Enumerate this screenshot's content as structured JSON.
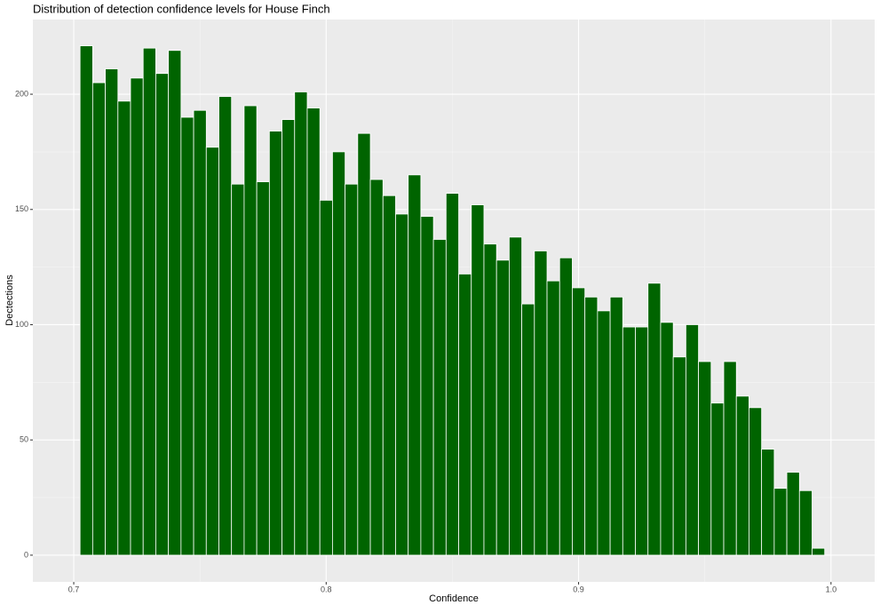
{
  "chart_data": {
    "type": "histogram",
    "title": "Distribution of detection confidence levels for House Finch",
    "x_label": "Confidence",
    "y_label": "Dectections",
    "bins": [
      0.7025,
      0.7075,
      0.7125,
      0.7175,
      0.7225,
      0.7275,
      0.7325,
      0.7375,
      0.7425,
      0.7475,
      0.7525,
      0.7575,
      0.7625,
      0.7675,
      0.7725,
      0.7775,
      0.7825,
      0.7875,
      0.7925,
      0.7975,
      0.8025,
      0.8075,
      0.8125,
      0.8175,
      0.8225,
      0.8275,
      0.8325,
      0.8375,
      0.8425,
      0.8475,
      0.8525,
      0.8575,
      0.8625,
      0.8675,
      0.8725,
      0.8775,
      0.8825,
      0.8875,
      0.8925,
      0.8975,
      0.9025,
      0.9075,
      0.9125,
      0.9175,
      0.9225,
      0.9275,
      0.9325,
      0.9375,
      0.9425,
      0.9475,
      0.9525,
      0.9575,
      0.9625,
      0.9675,
      0.9725,
      0.9775,
      0.9825,
      0.9875,
      0.9925,
      0.9975
    ],
    "values": [
      221,
      205,
      211,
      197,
      207,
      220,
      209,
      219,
      190,
      193,
      177,
      199,
      161,
      195,
      162,
      184,
      189,
      201,
      194,
      154,
      175,
      161,
      183,
      163,
      156,
      148,
      165,
      147,
      137,
      157,
      122,
      152,
      135,
      128,
      138,
      109,
      132,
      119,
      129,
      116,
      112,
      106,
      112,
      99,
      99,
      118,
      101,
      86,
      100,
      84,
      66,
      84,
      69,
      64,
      46,
      29,
      36,
      28,
      3
    ],
    "color": "#006400",
    "xlim": [
      0.6838,
      1.0173
    ],
    "ylim": [
      -11.6,
      232.4
    ],
    "xticks": [
      0.7,
      0.8,
      0.9,
      {
        "value": 1,
        "label": "1.0"
      }
    ],
    "yticks": [
      0,
      50,
      100,
      150,
      200
    ],
    "grid": true
  }
}
